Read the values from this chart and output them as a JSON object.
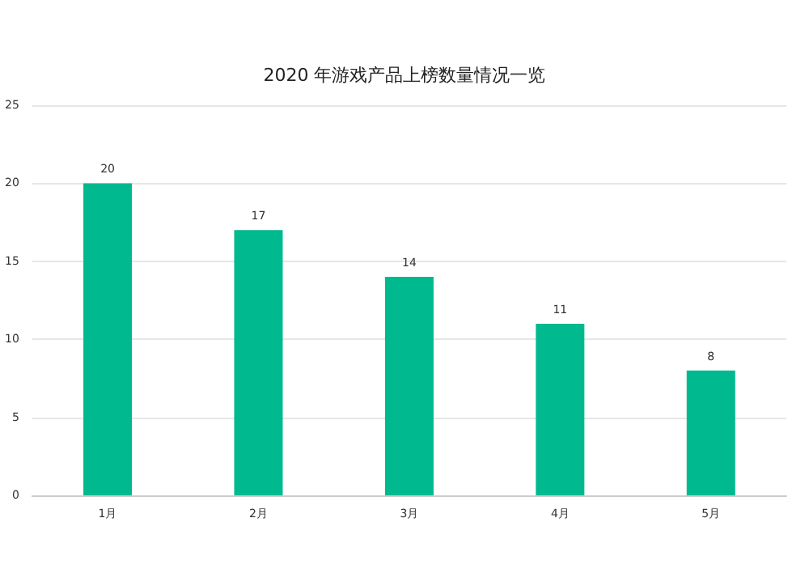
{
  "chart_data": {
    "type": "bar",
    "title": "2020 年游戏产品上榜数量情况一览",
    "categories": [
      "1月",
      "2月",
      "3月",
      "4月",
      "5月"
    ],
    "values": [
      20,
      17,
      14,
      11,
      8
    ],
    "color": "#00b98f",
    "ylim": [
      0,
      25
    ],
    "yticks": [
      0,
      5,
      10,
      15,
      20,
      25
    ],
    "grid": "y",
    "data_labels": true
  }
}
